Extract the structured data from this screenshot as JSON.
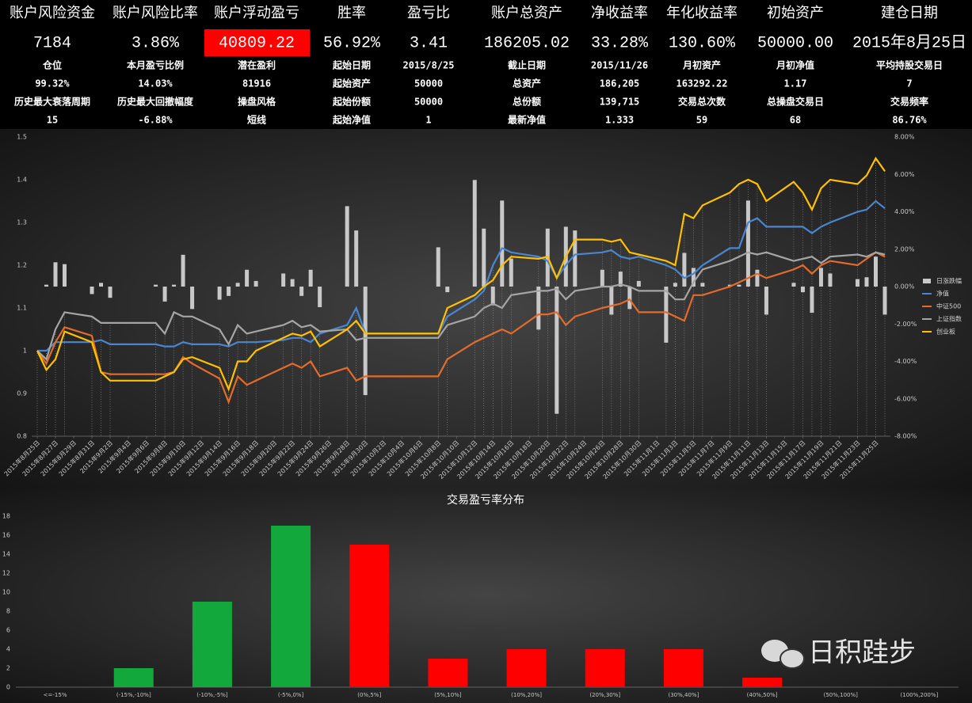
{
  "header": {
    "rows": [
      [
        "账户风险资金",
        "账户风险比率",
        "账户浮动盈亏",
        "胜率",
        "盈亏比",
        "账户总资产",
        "净收益率",
        "年化收益率",
        "初始资产",
        "建仓日期"
      ],
      [
        "7184",
        "3.86%",
        "40809.22",
        "56.92%",
        "3.41",
        "186205.02",
        "33.28%",
        "130.60%",
        "50000.00",
        "2015年8月25日"
      ],
      [
        "仓位",
        "本月盈亏比例",
        "潜在盈利",
        "起始日期",
        "2015/8/25",
        "截止日期",
        "2015/11/26",
        "月初资产",
        "月初净值",
        "平均持股交易日"
      ],
      [
        "99.32%",
        "14.03%",
        "81916",
        "起始资产",
        "50000",
        "总资产",
        "186,205",
        "163292.22",
        "1.17",
        "7"
      ],
      [
        "历史最大衰落周期",
        "历史最大回撤幅度",
        "操盘风格",
        "起始份额",
        "50000",
        "总份额",
        "139,715",
        "交易总次数",
        "总操盘交易日",
        "交易频率"
      ],
      [
        "15",
        "-6.88%",
        "短线",
        "起始净值",
        "1",
        "最新净值",
        "1.333",
        "59",
        "68",
        "86.76%"
      ]
    ]
  },
  "chart_data": [
    {
      "type": "combo",
      "x": [
        "2015-08-25",
        "2015-08-26",
        "2015-08-27",
        "2015-08-28",
        "2015-08-31",
        "2015-09-01",
        "2015-09-02",
        "2015-09-07",
        "2015-09-08",
        "2015-09-09",
        "2015-09-10",
        "2015-09-11",
        "2015-09-14",
        "2015-09-15",
        "2015-09-16",
        "2015-09-17",
        "2015-09-18",
        "2015-09-21",
        "2015-09-22",
        "2015-09-23",
        "2015-09-24",
        "2015-09-25",
        "2015-09-28",
        "2015-09-29",
        "2015-09-30",
        "2015-10-08",
        "2015-10-09",
        "2015-10-12",
        "2015-10-13",
        "2015-10-14",
        "2015-10-15",
        "2015-10-16",
        "2015-10-19",
        "2015-10-20",
        "2015-10-21",
        "2015-10-22",
        "2015-10-23",
        "2015-10-26",
        "2015-10-27",
        "2015-10-28",
        "2015-10-29",
        "2015-10-30",
        "2015-11-02",
        "2015-11-03",
        "2015-11-04",
        "2015-11-05",
        "2015-11-06",
        "2015-11-09",
        "2015-11-10",
        "2015-11-11",
        "2015-11-12",
        "2015-11-13",
        "2015-11-16",
        "2015-11-17",
        "2015-11-18",
        "2015-11-19",
        "2015-11-20",
        "2015-11-23",
        "2015-11-24",
        "2015-11-25",
        "2015-11-26"
      ],
      "series": [
        {
          "name": "日涨跌幅",
          "type": "bar",
          "axis": "y2",
          "color": "#c8c8c8",
          "values": [
            0,
            0.1,
            1.3,
            1.2,
            -0.4,
            0.2,
            -0.6,
            0.1,
            -0.8,
            0.1,
            1.7,
            -1.2,
            -0.7,
            -0.5,
            0.2,
            0.9,
            0.3,
            0.7,
            0.4,
            -0.5,
            0.9,
            -1.1,
            4.3,
            3.0,
            -5.8,
            2.1,
            -0.3,
            5.7,
            3.1,
            -1.0,
            4.6,
            1.5,
            -2.3,
            3.1,
            -6.8,
            3.2,
            3.0,
            0.9,
            -1.5,
            0.8,
            -1.2,
            0.3,
            -3.0,
            0.2,
            1.8,
            1.0,
            0.2,
            0.1,
            0.1,
            4.6,
            0.9,
            -1.5,
            0.2,
            -0.3,
            -1.4,
            1.0,
            0.7,
            0.4,
            0.5,
            1.6,
            -1.5
          ]
        },
        {
          "name": "净值",
          "type": "line",
          "color": "#4a86d0",
          "values": [
            1.0,
            1.0,
            1.02,
            1.02,
            1.02,
            1.025,
            1.015,
            1.015,
            1.01,
            1.01,
            1.02,
            1.015,
            1.015,
            1.01,
            1.02,
            1.02,
            1.02,
            1.025,
            1.03,
            1.03,
            1.02,
            1.04,
            1.06,
            1.1,
            1.04,
            1.04,
            1.08,
            1.12,
            1.14,
            1.2,
            1.24,
            1.23,
            1.22,
            1.21,
            1.17,
            1.2,
            1.225,
            1.23,
            1.235,
            1.22,
            1.215,
            1.22,
            1.2,
            1.19,
            1.17,
            1.18,
            1.2,
            1.24,
            1.24,
            1.3,
            1.31,
            1.29,
            1.29,
            1.29,
            1.275,
            1.29,
            1.3,
            1.325,
            1.33,
            1.35,
            1.333
          ]
        },
        {
          "name": "中证500",
          "type": "line",
          "color": "#e46c2a",
          "values": [
            1.0,
            0.97,
            1.02,
            1.055,
            1.035,
            0.95,
            0.945,
            0.945,
            0.945,
            0.95,
            0.985,
            0.97,
            0.935,
            0.88,
            0.94,
            0.92,
            0.93,
            0.96,
            0.97,
            0.96,
            0.975,
            0.94,
            0.96,
            0.93,
            0.94,
            0.94,
            0.98,
            1.02,
            1.03,
            1.04,
            1.05,
            1.04,
            1.085,
            1.085,
            1.09,
            1.06,
            1.08,
            1.1,
            1.105,
            1.11,
            1.12,
            1.09,
            1.09,
            1.08,
            1.07,
            1.13,
            1.13,
            1.15,
            1.16,
            1.17,
            1.18,
            1.17,
            1.19,
            1.2,
            1.18,
            1.2,
            1.21,
            1.2,
            1.215,
            1.23,
            1.22
          ]
        },
        {
          "name": "上证指数",
          "type": "line",
          "color": "#a5a5a5",
          "values": [
            1.0,
            0.98,
            1.05,
            1.09,
            1.08,
            1.065,
            1.065,
            1.065,
            1.04,
            1.09,
            1.08,
            1.08,
            1.05,
            1.015,
            1.06,
            1.04,
            1.045,
            1.06,
            1.07,
            1.055,
            1.06,
            1.045,
            1.05,
            1.025,
            1.03,
            1.03,
            1.06,
            1.08,
            1.1,
            1.11,
            1.1,
            1.13,
            1.14,
            1.14,
            1.145,
            1.12,
            1.14,
            1.15,
            1.15,
            1.155,
            1.15,
            1.14,
            1.14,
            1.12,
            1.12,
            1.16,
            1.19,
            1.21,
            1.22,
            1.23,
            1.225,
            1.23,
            1.21,
            1.215,
            1.22,
            1.205,
            1.22,
            1.225,
            1.22,
            1.23,
            1.225
          ]
        },
        {
          "name": "创业板",
          "type": "line",
          "color": "#ffc000",
          "values": [
            1.0,
            0.955,
            0.98,
            1.045,
            1.02,
            0.95,
            0.93,
            0.93,
            0.94,
            0.95,
            0.98,
            0.985,
            0.96,
            0.91,
            0.975,
            0.975,
            1.0,
            1.03,
            1.04,
            1.035,
            1.045,
            1.01,
            1.05,
            1.07,
            1.04,
            1.04,
            1.1,
            1.13,
            1.15,
            1.165,
            1.2,
            1.22,
            1.215,
            1.22,
            1.17,
            1.22,
            1.26,
            1.26,
            1.255,
            1.26,
            1.23,
            1.225,
            1.21,
            1.2,
            1.32,
            1.31,
            1.34,
            1.37,
            1.39,
            1.4,
            1.39,
            1.35,
            1.395,
            1.37,
            1.33,
            1.38,
            1.4,
            1.39,
            1.41,
            1.45,
            1.42
          ]
        }
      ],
      "xlim": [
        "2015-08-25",
        "2015-11-26"
      ],
      "xticks": [
        {
          "value": "2015-08-25",
          "label": "2015年8月25日"
        },
        {
          "value": "2015-08-27",
          "label": "2015年8月27日"
        },
        {
          "value": "2015-08-29",
          "label": "2015年8月29日"
        },
        {
          "value": "2015-08-31",
          "label": "2015年8月31日"
        },
        {
          "value": "2015-09-02",
          "label": "2015年9月2日"
        },
        {
          "value": "2015-09-04",
          "label": "2015年9月4日"
        },
        {
          "value": "2015-09-06",
          "label": "2015年9月6日"
        },
        {
          "value": "2015-09-08",
          "label": "2015年9月8日"
        },
        {
          "value": "2015-09-10",
          "label": "2015年9月10日"
        },
        {
          "value": "2015-09-12",
          "label": "2015年9月12日"
        },
        {
          "value": "2015-09-14",
          "label": "2015年9月14日"
        },
        {
          "value": "2015-09-16",
          "label": "2015年9月16日"
        },
        {
          "value": "2015-09-18",
          "label": "2015年9月18日"
        },
        {
          "value": "2015-09-20",
          "label": "2015年9月20日"
        },
        {
          "value": "2015-09-22",
          "label": "2015年9月22日"
        },
        {
          "value": "2015-09-24",
          "label": "2015年9月24日"
        },
        {
          "value": "2015-09-26",
          "label": "2015年9月26日"
        },
        {
          "value": "2015-09-28",
          "label": "2015年9月28日"
        },
        {
          "value": "2015-09-30",
          "label": "2015年9月30日"
        },
        {
          "value": "2015-10-02",
          "label": "2015年10月2日"
        },
        {
          "value": "2015-10-04",
          "label": "2015年10月4日"
        },
        {
          "value": "2015-10-06",
          "label": "2015年10月6日"
        },
        {
          "value": "2015-10-08",
          "label": "2015年10月8日"
        },
        {
          "value": "2015-10-10",
          "label": "2015年10月10日"
        },
        {
          "value": "2015-10-12",
          "label": "2015年10月12日"
        },
        {
          "value": "2015-10-14",
          "label": "2015年10月14日"
        },
        {
          "value": "2015-10-16",
          "label": "2015年10月16日"
        },
        {
          "value": "2015-10-18",
          "label": "2015年10月18日"
        },
        {
          "value": "2015-10-20",
          "label": "2015年10月20日"
        },
        {
          "value": "2015-10-22",
          "label": "2015年10月22日"
        },
        {
          "value": "2015-10-24",
          "label": "2015年10月24日"
        },
        {
          "value": "2015-10-26",
          "label": "2015年10月26日"
        },
        {
          "value": "2015-10-28",
          "label": "2015年10月28日"
        },
        {
          "value": "2015-10-30",
          "label": "2015年10月30日"
        },
        {
          "value": "2015-11-01",
          "label": "2015年11月1日"
        },
        {
          "value": "2015-11-03",
          "label": "2015年11月3日"
        },
        {
          "value": "2015-11-05",
          "label": "2015年11月5日"
        },
        {
          "value": "2015-11-07",
          "label": "2015年11月7日"
        },
        {
          "value": "2015-11-09",
          "label": "2015年11月9日"
        },
        {
          "value": "2015-11-11",
          "label": "2015年11月11日"
        },
        {
          "value": "2015-11-13",
          "label": "2015年11月13日"
        },
        {
          "value": "2015-11-15",
          "label": "2015年11月15日"
        },
        {
          "value": "2015-11-17",
          "label": "2015年11月17日"
        },
        {
          "value": "2015-11-19",
          "label": "2015年11月19日"
        },
        {
          "value": "2015-11-21",
          "label": "2015年11月21日"
        },
        {
          "value": "2015-11-23",
          "label": "2015年11月23日"
        },
        {
          "value": "2015-11-25",
          "label": "2015年11月25日"
        }
      ],
      "ylim": [
        0.8,
        1.5
      ],
      "yticks": [
        0.8,
        0.9,
        1,
        1.1,
        1.2,
        1.3,
        1.4,
        1.5
      ],
      "y2lim": [
        -8,
        8
      ],
      "y2ticks": [
        {
          "value": -8,
          "label": "-8.00%"
        },
        {
          "value": -6,
          "label": "-6.00%"
        },
        {
          "value": -4,
          "label": "-4.00%"
        },
        {
          "value": -2,
          "label": "-2.00%"
        },
        {
          "value": 0,
          "label": "0.00%"
        },
        {
          "value": 2,
          "label": "2.00%"
        },
        {
          "value": 4,
          "label": "4.00%"
        },
        {
          "value": 6,
          "label": "6.00%"
        },
        {
          "value": 8,
          "label": "8.00%"
        }
      ],
      "legend": "right",
      "grid": false
    },
    {
      "type": "bar",
      "title": "交易盈亏率分布",
      "categories": [
        "<=-15%",
        "(-15%,-10%]",
        "(-10%,-5%]",
        "(-5%,0%]",
        "(0%,5%]",
        "(5%,10%]",
        "(10%,20%]",
        "(20%,30%]",
        "(30%,40%]",
        "(40%,50%]",
        "(50%,100%]",
        "(100%,200%]"
      ],
      "values": [
        0,
        2,
        9,
        17,
        15,
        3,
        4,
        4,
        4,
        1,
        0,
        0
      ],
      "colors": [
        "#13a83c",
        "#13a83c",
        "#13a83c",
        "#13a83c",
        "#ff0000",
        "#ff0000",
        "#ff0000",
        "#ff0000",
        "#ff0000",
        "#ff0000",
        "#ff0000",
        "#ff0000"
      ],
      "ylim": [
        0,
        18
      ],
      "yticks": [
        0,
        2,
        4,
        6,
        8,
        10,
        12,
        14,
        16,
        18
      ],
      "grid": false
    }
  ],
  "watermark": "日积跬步"
}
